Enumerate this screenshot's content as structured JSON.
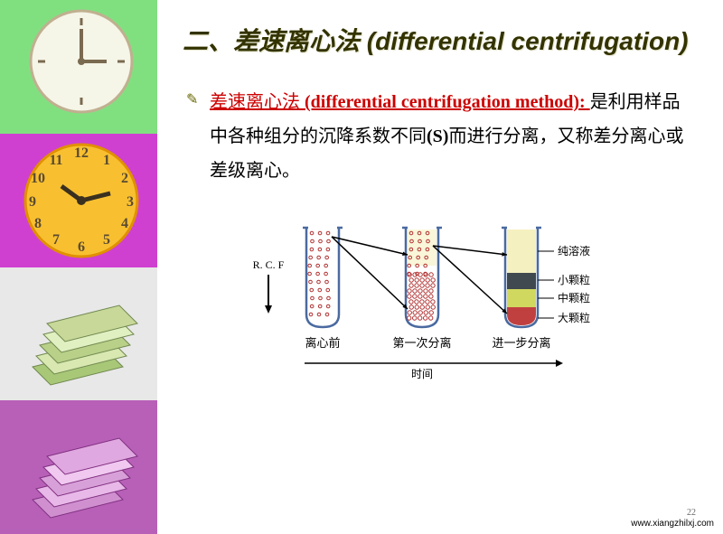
{
  "title": "二、差速离心法 (differential centrifugation)",
  "term_cn": "差速离心法",
  "term_en": " (differential centrifugation method): ",
  "body_rest_1": " 是利用样品中各种组分的沉降系数不同",
  "body_rest_en": "(S)",
  "body_rest_2": "而进行分离，又称差分离心或差级离心。",
  "diagram": {
    "rcf_label": "R. C. F",
    "tubes": [
      {
        "label": "离心前",
        "fill_mode": "full"
      },
      {
        "label": "第一次分离",
        "fill_mode": "partial"
      },
      {
        "label": "进一步分离",
        "fill_mode": "layers"
      }
    ],
    "time_axis_label": "时间",
    "layer_labels": [
      "纯溶液",
      "小颗粒",
      "中颗粒",
      "大颗粒"
    ],
    "colors": {
      "tube_stroke": "#4a6aa0",
      "dots": "#b03030",
      "supernatant": "#f5f0c0",
      "layer_small": "#404850",
      "layer_mid": "#d0d860",
      "layer_large": "#c04040",
      "arrow": "#000000",
      "text": "#000000"
    }
  },
  "footer_url": "www.xiangzhilxj.com",
  "page_number": "22",
  "sidebar_colors": [
    "#80e080",
    "#d040d0",
    "#e8e8e8",
    "#b860b8"
  ]
}
